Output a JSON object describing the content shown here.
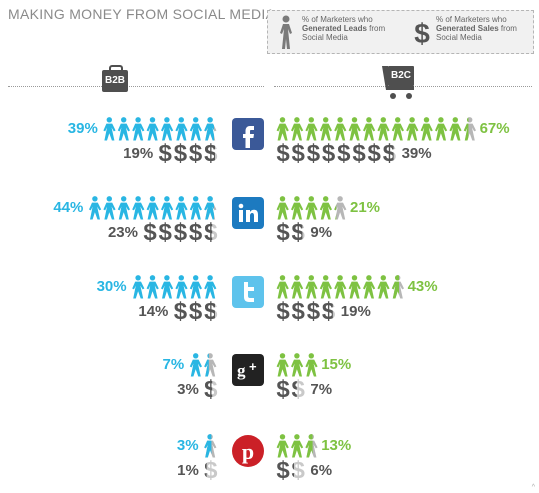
{
  "title": "MAKING MONEY FROM SOCIAL MEDIA",
  "legend": {
    "leads_pre": "% of Marketers who",
    "leads_bold": "Generated Leads",
    "leads_post1": " from",
    "leads_post2": "Social Media",
    "sales_pre": "% of Marketers who",
    "sales_bold": "Generated Sales",
    "sales_post1": " from",
    "sales_post2": "Social Media",
    "leads_icon": "person-icon",
    "sales_icon": "dollar-icon"
  },
  "segments": {
    "b2b": "B2B",
    "b2c": "B2C"
  },
  "corner_mark": "^",
  "colors": {
    "b2b": "#29b6e3",
    "b2c": "#7ec242",
    "sales": "#555555"
  },
  "chart_data": {
    "type": "pictograph",
    "title": "MAKING MONEY FROM SOCIAL MEDIA",
    "categories": [
      "Facebook",
      "LinkedIn",
      "Twitter",
      "Google+",
      "Pinterest"
    ],
    "series": [
      {
        "name": "B2B Generated Leads",
        "values": [
          39,
          44,
          30,
          7,
          3
        ]
      },
      {
        "name": "B2B Generated Sales",
        "values": [
          19,
          23,
          14,
          3,
          1
        ]
      },
      {
        "name": "B2C Generated Leads",
        "values": [
          67,
          21,
          43,
          15,
          13
        ]
      },
      {
        "name": "B2C Generated Sales",
        "values": [
          39,
          9,
          19,
          7,
          6
        ]
      }
    ],
    "rows": [
      {
        "network": "facebook",
        "logo": "f",
        "b2b_leads": 39,
        "b2b_sales": 19,
        "b2c_leads": 67,
        "b2c_sales": 39,
        "b2b_leads_label": "39%",
        "b2b_sales_label": "19%",
        "b2c_leads_label": "67%",
        "b2c_sales_label": "39%"
      },
      {
        "network": "linkedin",
        "logo": "in",
        "b2b_leads": 44,
        "b2b_sales": 23,
        "b2c_leads": 21,
        "b2c_sales": 9,
        "b2b_leads_label": "44%",
        "b2b_sales_label": "23%",
        "b2c_leads_label": "21%",
        "b2c_sales_label": "9%"
      },
      {
        "network": "twitter",
        "logo": "t",
        "b2b_leads": 30,
        "b2b_sales": 14,
        "b2c_leads": 43,
        "b2c_sales": 19,
        "b2b_leads_label": "30%",
        "b2b_sales_label": "14%",
        "b2c_leads_label": "43%",
        "b2c_sales_label": "19%"
      },
      {
        "network": "google-plus",
        "logo": "g+",
        "b2b_leads": 7,
        "b2b_sales": 3,
        "b2c_leads": 15,
        "b2c_sales": 7,
        "b2b_leads_label": "7%",
        "b2b_sales_label": "3%",
        "b2c_leads_label": "15%",
        "b2c_sales_label": "7%"
      },
      {
        "network": "pinterest",
        "logo": "p",
        "b2b_leads": 3,
        "b2b_sales": 1,
        "b2c_leads": 13,
        "b2c_sales": 6,
        "b2b_leads_label": "3%",
        "b2b_sales_label": "1%",
        "b2c_leads_label": "13%",
        "b2c_sales_label": "6%"
      }
    ]
  }
}
